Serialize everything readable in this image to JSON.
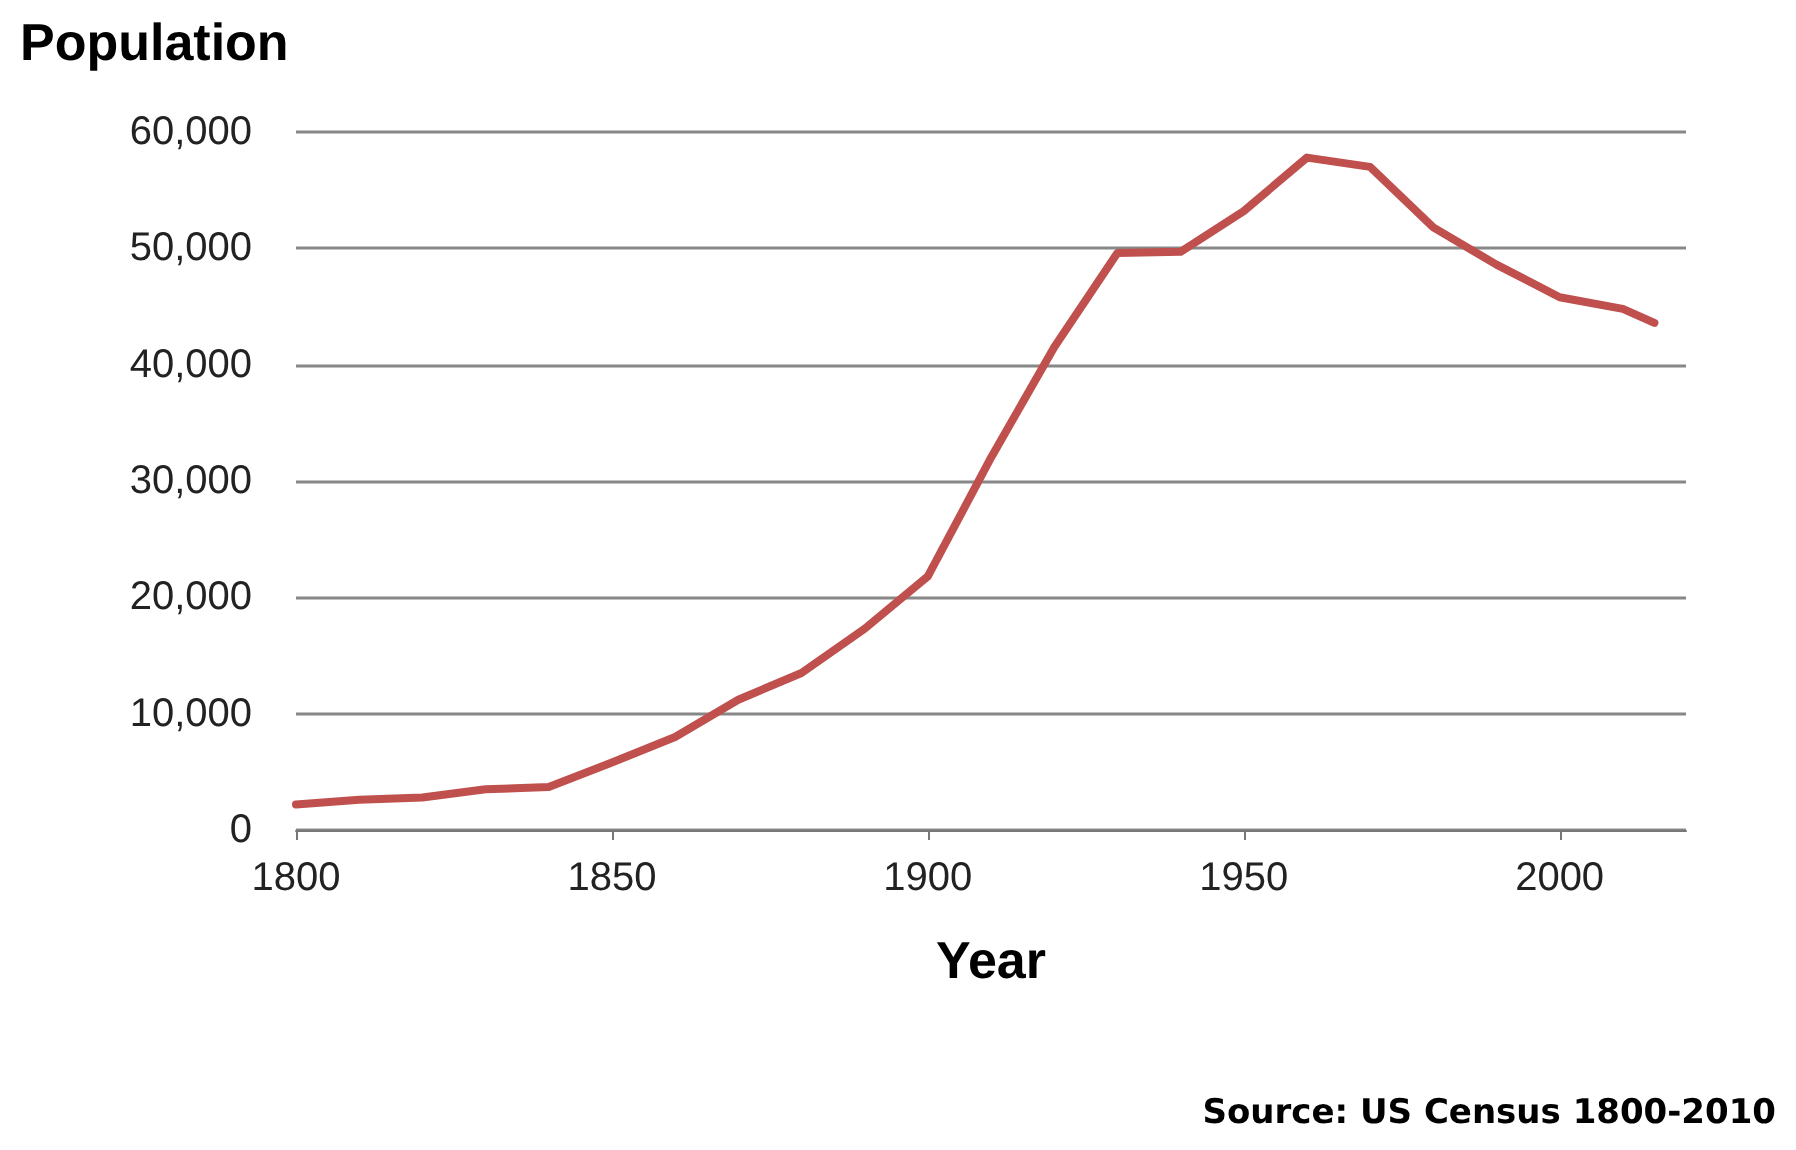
{
  "chart_data": {
    "type": "line",
    "xlabel": "Year",
    "ylabel": "Population",
    "annotations": [
      "Source: US Census 1800-2010"
    ],
    "x": [
      1800,
      1810,
      1820,
      1830,
      1840,
      1850,
      1860,
      1870,
      1880,
      1890,
      1900,
      1910,
      1920,
      1930,
      1940,
      1950,
      1960,
      1970,
      1980,
      1990,
      2000,
      2010,
      2015
    ],
    "series": [
      {
        "color": "#c0504d",
        "values": [
          2200,
          2600,
          2800,
          3500,
          3700,
          5800,
          8000,
          11200,
          13500,
          17300,
          21800,
          32000,
          41500,
          49600,
          49700,
          53200,
          57800,
          57000,
          51800,
          48600,
          45800,
          44800,
          43600
        ]
      }
    ],
    "xlim": [
      1800,
      2020
    ],
    "xticks": [
      1800,
      1850,
      1900,
      1950,
      2000
    ],
    "ylim": [
      0,
      60000
    ],
    "yticks": [
      0,
      {
        "value": 10000,
        "label": "10,000"
      },
      {
        "value": 20000,
        "label": "20,000"
      },
      {
        "value": 30000,
        "label": "30,000"
      },
      {
        "value": 40000,
        "label": "40,000"
      },
      {
        "value": 50000,
        "label": "50,000"
      },
      {
        "value": 60000,
        "label": "60,000"
      }
    ],
    "grid": "y",
    "marker": "none",
    "line_style": "solid"
  }
}
